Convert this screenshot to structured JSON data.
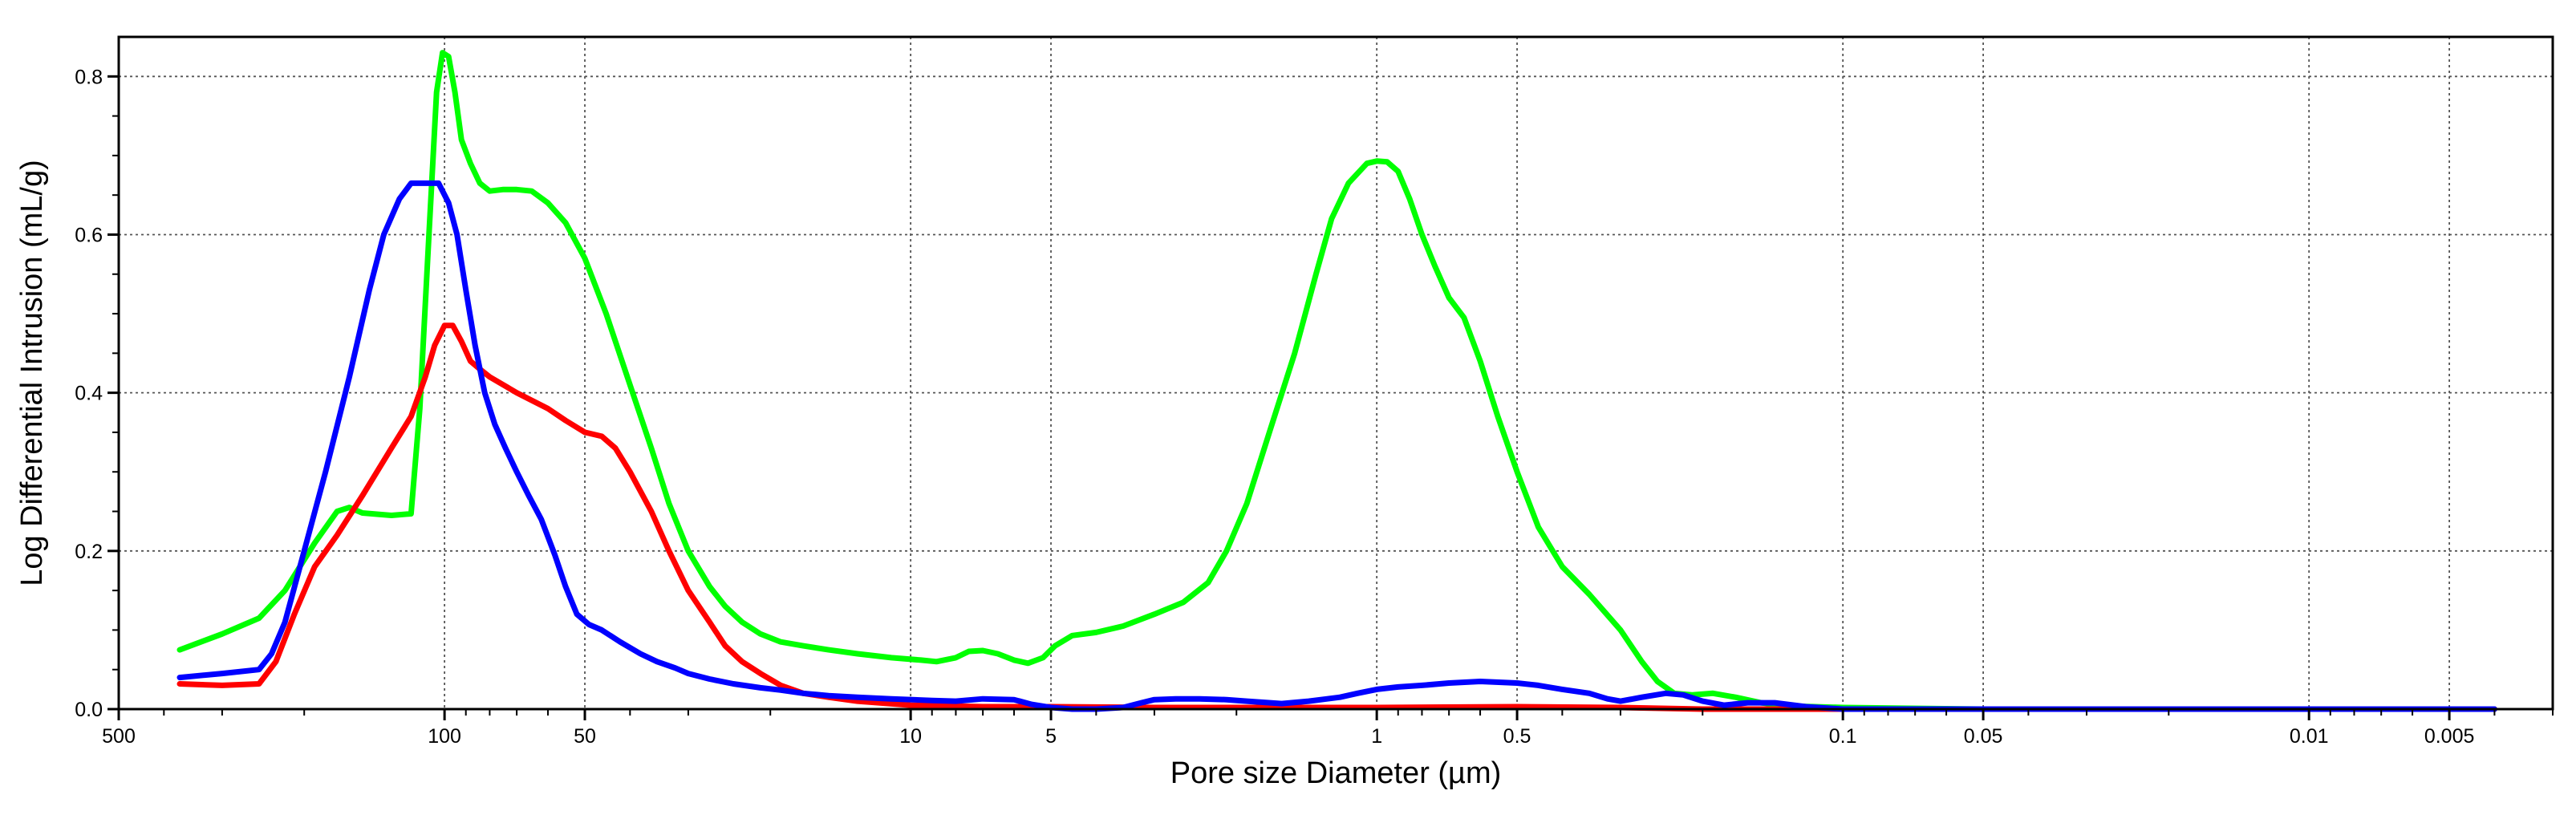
{
  "chart_data": {
    "type": "line",
    "title": "",
    "xlabel": "Pore size Diameter (µm)",
    "ylabel": "Log Differential Intrusion (mL/g)",
    "x_scale": "log",
    "x_reversed": true,
    "xlim": [
      500,
      0.003
    ],
    "ylim": [
      0,
      0.85
    ],
    "grid": true,
    "legend": "none",
    "x_ticks": [
      {
        "value": 500,
        "label": "500"
      },
      {
        "value": 100,
        "label": "100"
      },
      {
        "value": 50,
        "label": "50"
      },
      {
        "value": 10,
        "label": "10"
      },
      {
        "value": 5,
        "label": "5"
      },
      {
        "value": 1,
        "label": "1"
      },
      {
        "value": 0.5,
        "label": "0.5"
      },
      {
        "value": 0.1,
        "label": "0.1"
      },
      {
        "value": 0.05,
        "label": "0.05"
      },
      {
        "value": 0.01,
        "label": "0.01"
      },
      {
        "value": 0.005,
        "label": "0.005"
      }
    ],
    "y_ticks": [
      {
        "value": 0.0,
        "label": "0.0"
      },
      {
        "value": 0.2,
        "label": "0.2"
      },
      {
        "value": 0.4,
        "label": "0.4"
      },
      {
        "value": 0.6,
        "label": "0.6"
      },
      {
        "value": 0.8,
        "label": "0.8"
      }
    ],
    "series": [
      {
        "color": "#00ff00",
        "points": [
          [
            370,
            0.075
          ],
          [
            300,
            0.095
          ],
          [
            250,
            0.115
          ],
          [
            220,
            0.15
          ],
          [
            190,
            0.21
          ],
          [
            170,
            0.25
          ],
          [
            160,
            0.255
          ],
          [
            150,
            0.248
          ],
          [
            130,
            0.245
          ],
          [
            118,
            0.247
          ],
          [
            113,
            0.38
          ],
          [
            108,
            0.6
          ],
          [
            104,
            0.78
          ],
          [
            101,
            0.83
          ],
          [
            98,
            0.825
          ],
          [
            95,
            0.78
          ],
          [
            92,
            0.72
          ],
          [
            88,
            0.69
          ],
          [
            84,
            0.665
          ],
          [
            80,
            0.655
          ],
          [
            75,
            0.657
          ],
          [
            70,
            0.657
          ],
          [
            65,
            0.655
          ],
          [
            60,
            0.64
          ],
          [
            55,
            0.615
          ],
          [
            50,
            0.57
          ],
          [
            45,
            0.5
          ],
          [
            40,
            0.41
          ],
          [
            36,
            0.33
          ],
          [
            33,
            0.26
          ],
          [
            30,
            0.2
          ],
          [
            27,
            0.155
          ],
          [
            25,
            0.13
          ],
          [
            23,
            0.11
          ],
          [
            21,
            0.095
          ],
          [
            19,
            0.085
          ],
          [
            17,
            0.08
          ],
          [
            15,
            0.075
          ],
          [
            13,
            0.07
          ],
          [
            11,
            0.065
          ],
          [
            9.5,
            0.062
          ],
          [
            8.8,
            0.06
          ],
          [
            8,
            0.065
          ],
          [
            7.5,
            0.073
          ],
          [
            7,
            0.074
          ],
          [
            6.5,
            0.07
          ],
          [
            6,
            0.062
          ],
          [
            5.6,
            0.058
          ],
          [
            5.2,
            0.065
          ],
          [
            4.9,
            0.08
          ],
          [
            4.5,
            0.093
          ],
          [
            4.0,
            0.097
          ],
          [
            3.5,
            0.105
          ],
          [
            3.0,
            0.12
          ],
          [
            2.6,
            0.135
          ],
          [
            2.3,
            0.16
          ],
          [
            2.1,
            0.2
          ],
          [
            1.9,
            0.26
          ],
          [
            1.7,
            0.35
          ],
          [
            1.5,
            0.45
          ],
          [
            1.35,
            0.55
          ],
          [
            1.25,
            0.62
          ],
          [
            1.15,
            0.665
          ],
          [
            1.05,
            0.69
          ],
          [
            1.0,
            0.693
          ],
          [
            0.95,
            0.692
          ],
          [
            0.9,
            0.68
          ],
          [
            0.85,
            0.645
          ],
          [
            0.8,
            0.6
          ],
          [
            0.75,
            0.56
          ],
          [
            0.7,
            0.52
          ],
          [
            0.65,
            0.495
          ],
          [
            0.6,
            0.44
          ],
          [
            0.55,
            0.37
          ],
          [
            0.5,
            0.3
          ],
          [
            0.45,
            0.23
          ],
          [
            0.4,
            0.18
          ],
          [
            0.35,
            0.145
          ],
          [
            0.3,
            0.1
          ],
          [
            0.27,
            0.06
          ],
          [
            0.25,
            0.035
          ],
          [
            0.23,
            0.02
          ],
          [
            0.21,
            0.018
          ],
          [
            0.19,
            0.02
          ],
          [
            0.17,
            0.015
          ],
          [
            0.15,
            0.008
          ],
          [
            0.13,
            0.004
          ],
          [
            0.1,
            0.002
          ],
          [
            0.05,
            0.0
          ],
          [
            0.02,
            0.0
          ],
          [
            0.01,
            0.0
          ],
          [
            0.004,
            0.0
          ]
        ]
      },
      {
        "color": "#ff0000",
        "points": [
          [
            370,
            0.032
          ],
          [
            300,
            0.03
          ],
          [
            250,
            0.032
          ],
          [
            230,
            0.06
          ],
          [
            210,
            0.12
          ],
          [
            190,
            0.18
          ],
          [
            170,
            0.22
          ],
          [
            150,
            0.27
          ],
          [
            130,
            0.33
          ],
          [
            118,
            0.37
          ],
          [
            110,
            0.42
          ],
          [
            105,
            0.46
          ],
          [
            100,
            0.485
          ],
          [
            96,
            0.485
          ],
          [
            92,
            0.465
          ],
          [
            88,
            0.44
          ],
          [
            84,
            0.43
          ],
          [
            80,
            0.42
          ],
          [
            70,
            0.4
          ],
          [
            60,
            0.38
          ],
          [
            55,
            0.365
          ],
          [
            50,
            0.35
          ],
          [
            46,
            0.345
          ],
          [
            43,
            0.33
          ],
          [
            40,
            0.3
          ],
          [
            36,
            0.25
          ],
          [
            33,
            0.2
          ],
          [
            30,
            0.15
          ],
          [
            27,
            0.11
          ],
          [
            25,
            0.08
          ],
          [
            23,
            0.06
          ],
          [
            21,
            0.045
          ],
          [
            19,
            0.03
          ],
          [
            17,
            0.02
          ],
          [
            15,
            0.015
          ],
          [
            13,
            0.01
          ],
          [
            10,
            0.005
          ],
          [
            7,
            0.003
          ],
          [
            5,
            0.003
          ],
          [
            3,
            0.002
          ],
          [
            2,
            0.002
          ],
          [
            1,
            0.002
          ],
          [
            0.5,
            0.003
          ],
          [
            0.3,
            0.002
          ],
          [
            0.2,
            0.0
          ],
          [
            0.1,
            0.0
          ],
          [
            0.05,
            0.0
          ],
          [
            0.01,
            0.0
          ],
          [
            0.004,
            0.0
          ]
        ]
      },
      {
        "color": "#0000ff",
        "points": [
          [
            370,
            0.04
          ],
          [
            300,
            0.045
          ],
          [
            250,
            0.05
          ],
          [
            235,
            0.07
          ],
          [
            220,
            0.11
          ],
          [
            200,
            0.2
          ],
          [
            180,
            0.3
          ],
          [
            160,
            0.42
          ],
          [
            145,
            0.53
          ],
          [
            135,
            0.6
          ],
          [
            125,
            0.645
          ],
          [
            118,
            0.665
          ],
          [
            110,
            0.665
          ],
          [
            103,
            0.665
          ],
          [
            98,
            0.64
          ],
          [
            94,
            0.6
          ],
          [
            90,
            0.53
          ],
          [
            86,
            0.46
          ],
          [
            82,
            0.4
          ],
          [
            78,
            0.36
          ],
          [
            74,
            0.33
          ],
          [
            70,
            0.3
          ],
          [
            66,
            0.27
          ],
          [
            62,
            0.24
          ],
          [
            58,
            0.195
          ],
          [
            55,
            0.155
          ],
          [
            52,
            0.12
          ],
          [
            49,
            0.107
          ],
          [
            46,
            0.1
          ],
          [
            42,
            0.085
          ],
          [
            38,
            0.07
          ],
          [
            35,
            0.06
          ],
          [
            32,
            0.052
          ],
          [
            30,
            0.045
          ],
          [
            27,
            0.038
          ],
          [
            24,
            0.032
          ],
          [
            21,
            0.027
          ],
          [
            19,
            0.024
          ],
          [
            17,
            0.02
          ],
          [
            15,
            0.017
          ],
          [
            13,
            0.015
          ],
          [
            11,
            0.013
          ],
          [
            9,
            0.011
          ],
          [
            8,
            0.01
          ],
          [
            7,
            0.013
          ],
          [
            6,
            0.012
          ],
          [
            5.5,
            0.006
          ],
          [
            5,
            0.002
          ],
          [
            4.5,
            0.0
          ],
          [
            4,
            0.0
          ],
          [
            3.5,
            0.002
          ],
          [
            3.2,
            0.008
          ],
          [
            3,
            0.012
          ],
          [
            2.7,
            0.013
          ],
          [
            2.4,
            0.013
          ],
          [
            2.1,
            0.012
          ],
          [
            1.9,
            0.01
          ],
          [
            1.6,
            0.007
          ],
          [
            1.4,
            0.01
          ],
          [
            1.2,
            0.015
          ],
          [
            1.1,
            0.02
          ],
          [
            1.0,
            0.025
          ],
          [
            0.9,
            0.028
          ],
          [
            0.8,
            0.03
          ],
          [
            0.7,
            0.033
          ],
          [
            0.6,
            0.035
          ],
          [
            0.5,
            0.033
          ],
          [
            0.45,
            0.03
          ],
          [
            0.4,
            0.025
          ],
          [
            0.35,
            0.02
          ],
          [
            0.32,
            0.013
          ],
          [
            0.3,
            0.01
          ],
          [
            0.27,
            0.015
          ],
          [
            0.24,
            0.02
          ],
          [
            0.22,
            0.018
          ],
          [
            0.2,
            0.01
          ],
          [
            0.18,
            0.005
          ],
          [
            0.16,
            0.008
          ],
          [
            0.14,
            0.008
          ],
          [
            0.12,
            0.003
          ],
          [
            0.1,
            0.0
          ],
          [
            0.05,
            0.0
          ],
          [
            0.01,
            0.0
          ],
          [
            0.004,
            0.0
          ]
        ]
      }
    ]
  }
}
